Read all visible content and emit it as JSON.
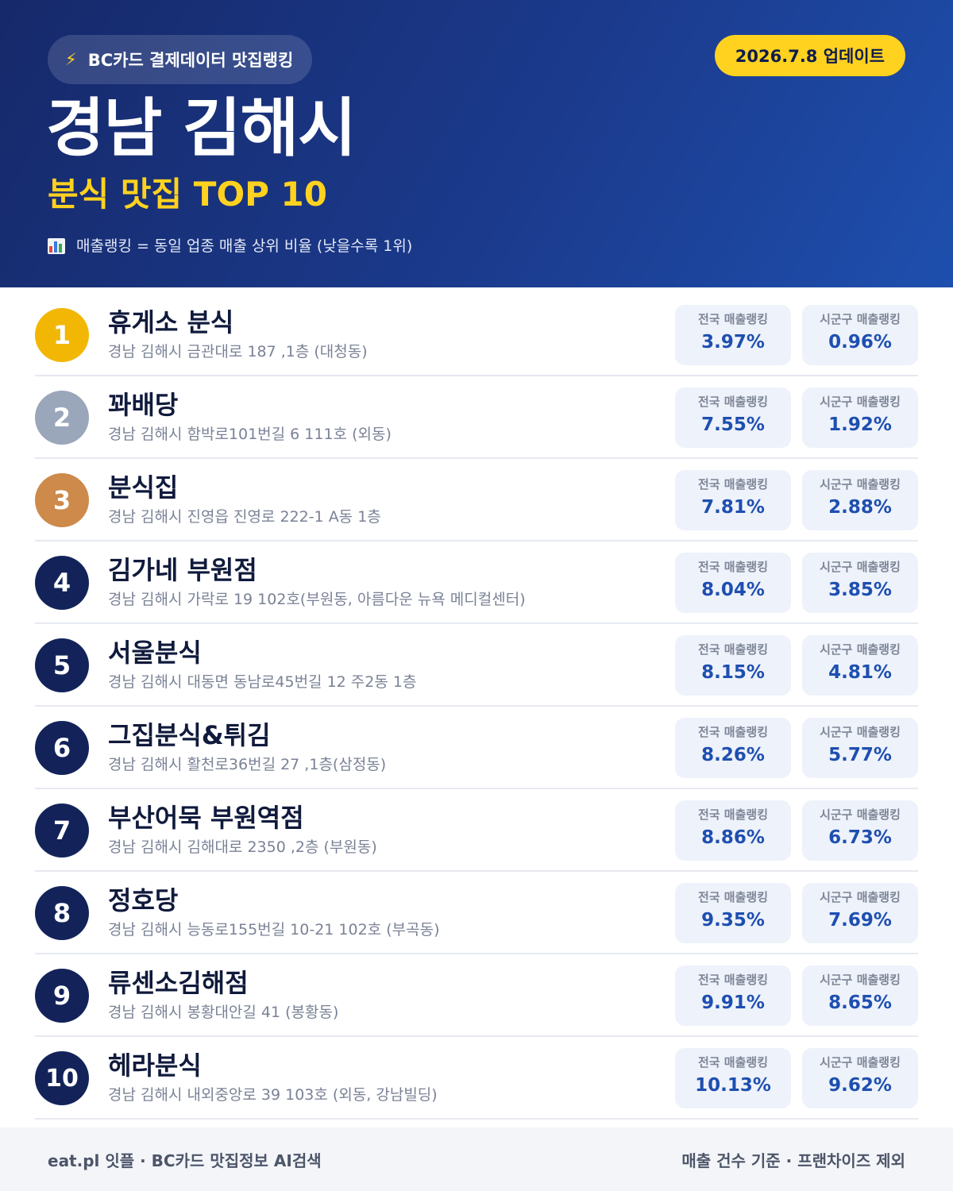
{
  "header": {
    "source_badge": "BC카드 결제데이터 맛집랭킹",
    "update_badge": "2026.7.8 업데이트",
    "region_title": "경남 김해시",
    "sub_title": "분식 맛집 TOP 10",
    "legend_note": "매출랭킹 = 동일 업종 매출 상위 비율 (낮을수록 1위)"
  },
  "labels": {
    "national": "전국 매출랭킹",
    "local": "시군구 매출랭킹"
  },
  "restaurants": [
    {
      "rank": "1",
      "name": "휴게소 분식",
      "address": "경남 김해시 금관대로 187 ,1층 (대청동)",
      "national": "3.97%",
      "local": "0.96%"
    },
    {
      "rank": "2",
      "name": "꽈배당",
      "address": "경남 김해시 함박로101번길 6 111호 (외동)",
      "national": "7.55%",
      "local": "1.92%"
    },
    {
      "rank": "3",
      "name": "분식집",
      "address": "경남 김해시 진영읍 진영로 222-1 A동 1층",
      "national": "7.81%",
      "local": "2.88%"
    },
    {
      "rank": "4",
      "name": "김가네 부원점",
      "address": "경남 김해시 가락로 19 102호(부원동, 아름다운 뉴욕 메디컬센터)",
      "national": "8.04%",
      "local": "3.85%"
    },
    {
      "rank": "5",
      "name": "서울분식",
      "address": "경남 김해시 대동면 동남로45번길 12 주2동 1층",
      "national": "8.15%",
      "local": "4.81%"
    },
    {
      "rank": "6",
      "name": "그집분식&튀김",
      "address": "경남 김해시 활천로36번길 27 ,1층(삼정동)",
      "national": "8.26%",
      "local": "5.77%"
    },
    {
      "rank": "7",
      "name": "부산어묵 부원역점",
      "address": "경남 김해시 김해대로 2350 ,2층 (부원동)",
      "national": "8.86%",
      "local": "6.73%"
    },
    {
      "rank": "8",
      "name": "정호당",
      "address": "경남 김해시 능동로155번길 10-21 102호 (부곡동)",
      "national": "9.35%",
      "local": "7.69%"
    },
    {
      "rank": "9",
      "name": "류센소김해점",
      "address": "경남 김해시 봉황대안길 41 (봉황동)",
      "national": "9.91%",
      "local": "8.65%"
    },
    {
      "rank": "10",
      "name": "헤라분식",
      "address": "경남 김해시 내외중앙로 39 103호 (외동, 강남빌딩)",
      "national": "10.13%",
      "local": "9.62%"
    }
  ],
  "footer": {
    "left": "eat.pl 잇플 · BC카드 맛집정보 AI검색",
    "right": "매출 건수 기준 · 프랜차이즈 제외"
  },
  "colors": {
    "header_bg": "#1b3a8c",
    "accent_yellow": "#ffd21f",
    "rank_gold": "#f2b705",
    "rank_silver": "#9aa6ba",
    "rank_bronze": "#cd8a4a",
    "rank_default": "#13235a",
    "value_blue": "#1e4fb0"
  },
  "icons": {
    "source_badge": "lightning-bolt-icon",
    "legend_note": "bar-chart-icon"
  }
}
